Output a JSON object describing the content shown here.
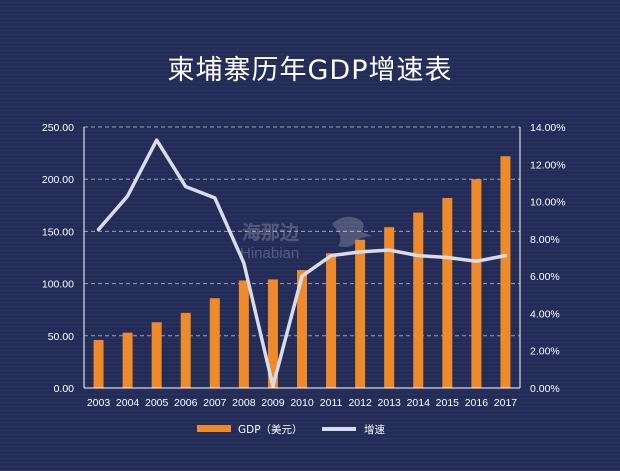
{
  "chart_data": {
    "type": "bar+line",
    "title": "柬埔寨历年GDP增速表",
    "categories": [
      "2003",
      "2004",
      "2005",
      "2006",
      "2007",
      "2008",
      "2009",
      "2010",
      "2011",
      "2012",
      "2013",
      "2014",
      "2015",
      "2016",
      "2017"
    ],
    "series": [
      {
        "name": "GDP（美元）",
        "type": "bar",
        "axis": "left",
        "color": "#ef8a2b",
        "values": [
          46,
          53,
          63,
          72,
          86,
          103,
          104,
          113,
          129,
          142,
          154,
          168,
          182,
          200,
          222
        ]
      },
      {
        "name": "增速",
        "type": "line",
        "axis": "right",
        "color": "#d9dce6",
        "values": [
          8.5,
          10.3,
          13.3,
          10.8,
          10.2,
          6.7,
          0.1,
          6.0,
          7.1,
          7.3,
          7.4,
          7.1,
          7.0,
          6.8,
          7.1
        ]
      }
    ],
    "left_axis": {
      "range": [
        0,
        250
      ],
      "ticks": [
        "0.00",
        "50.00",
        "100.00",
        "150.00",
        "200.00",
        "250.00"
      ]
    },
    "right_axis": {
      "range": [
        0,
        14
      ],
      "ticks": [
        "0.00%",
        "2.00%",
        "4.00%",
        "6.00%",
        "8.00%",
        "10.00%",
        "12.00%",
        "14.00%"
      ]
    },
    "grid": "dashed horizontal",
    "legend_placement": "bottom-center",
    "watermark": {
      "cn": "海那边",
      "en": "Hinabian"
    }
  }
}
